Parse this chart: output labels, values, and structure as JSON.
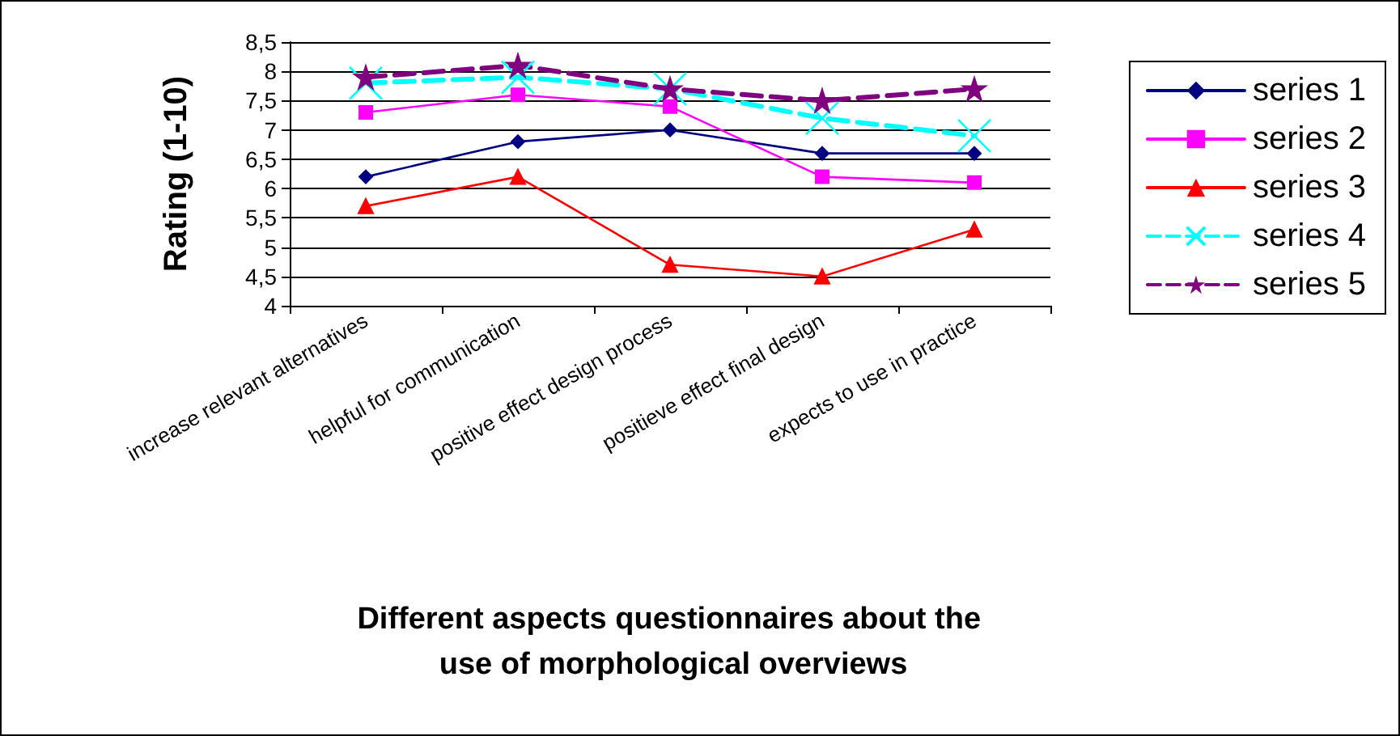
{
  "chart_data": {
    "type": "line",
    "ylabel": "Rating (1-10)",
    "xlabel": "Different aspects questionnaires about the use of morphological overviews",
    "categories": [
      "increase relevant alternatives",
      "helpful for communication",
      "positive effect design process",
      "positieve effect final design",
      "expects to use in practice"
    ],
    "series": [
      {
        "name": "series 1",
        "color": "#000080",
        "marker": "diamond",
        "line_style": "solid",
        "values": [
          6.2,
          6.8,
          7.0,
          6.6,
          6.6
        ]
      },
      {
        "name": "series 2",
        "color": "#ff00ff",
        "marker": "square",
        "line_style": "solid",
        "values": [
          7.3,
          7.6,
          7.4,
          6.2,
          6.1
        ]
      },
      {
        "name": "series 3",
        "color": "#ff0000",
        "marker": "triangle",
        "line_style": "solid",
        "values": [
          5.7,
          6.2,
          4.7,
          4.5,
          5.3
        ]
      },
      {
        "name": "series 4",
        "color": "#00ffff",
        "marker": "cross",
        "line_style": "dashed",
        "values": [
          7.8,
          7.9,
          7.7,
          7.2,
          6.9
        ]
      },
      {
        "name": "series 5",
        "color": "#800080",
        "marker": "star",
        "line_style": "dashed",
        "values": [
          7.9,
          8.1,
          7.7,
          7.5,
          7.7
        ]
      }
    ],
    "ylim": [
      4,
      8.5
    ],
    "yticks": [
      {
        "value": 4,
        "label": "4"
      },
      {
        "value": 4.5,
        "label": "4,5"
      },
      {
        "value": 5,
        "label": "5"
      },
      {
        "value": 5.5,
        "label": "5,5"
      },
      {
        "value": 6,
        "label": "6"
      },
      {
        "value": 6.5,
        "label": "6,5"
      },
      {
        "value": 7,
        "label": "7"
      },
      {
        "value": 7.5,
        "label": "7,5"
      },
      {
        "value": 8,
        "label": "8"
      },
      {
        "value": 8.5,
        "label": "8,5"
      }
    ],
    "grid": "y",
    "legend": "right"
  }
}
